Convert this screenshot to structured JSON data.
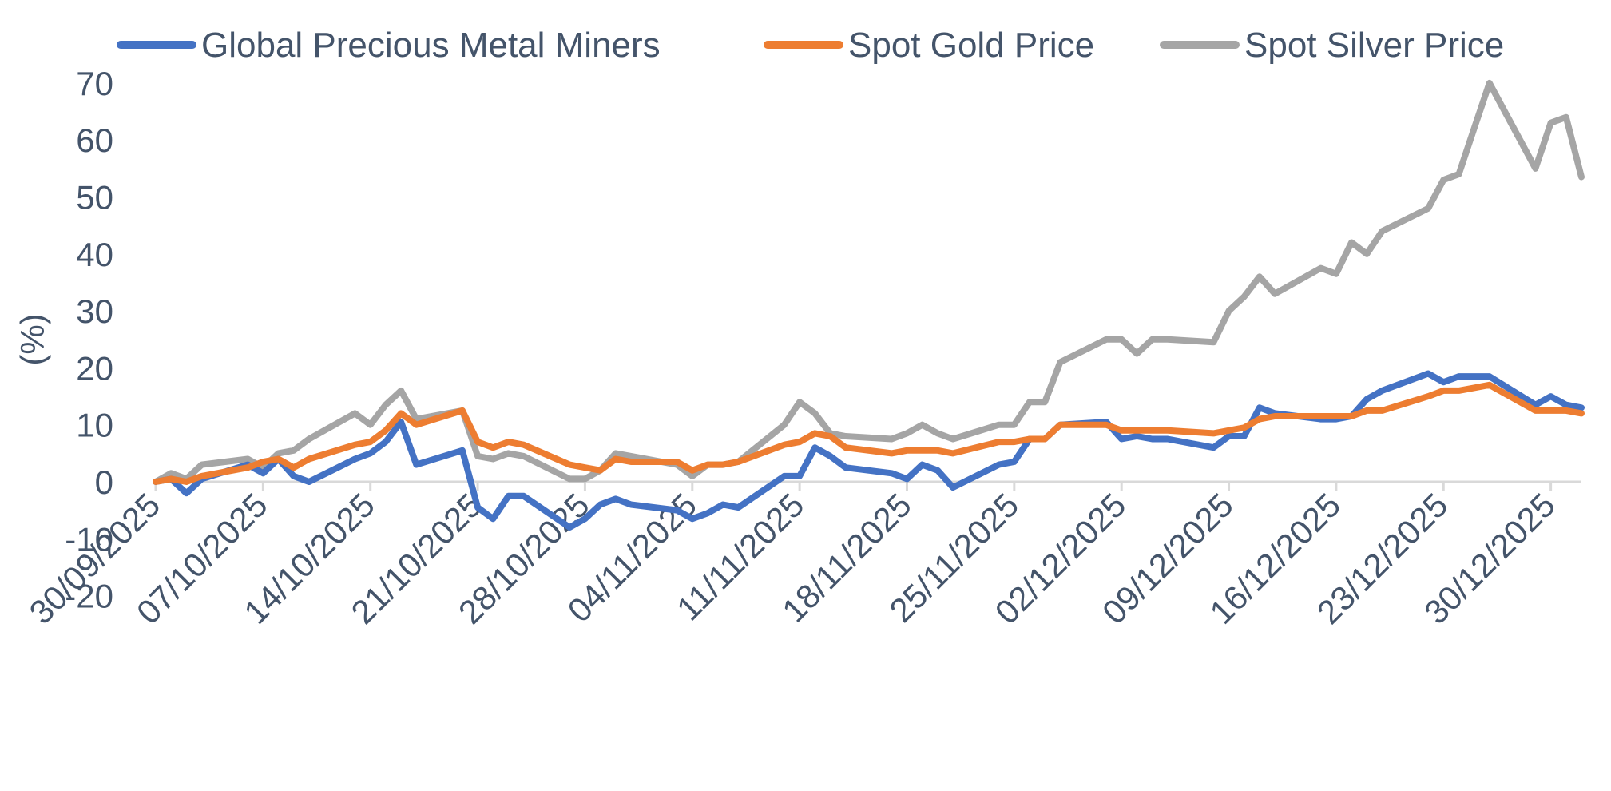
{
  "chart_data": {
    "type": "line",
    "title": "",
    "xlabel": "",
    "ylabel": "(%)",
    "ylim": [
      -20,
      70
    ],
    "yticks": [
      -20,
      -10,
      0,
      10,
      20,
      30,
      40,
      50,
      60,
      70
    ],
    "grid": false,
    "legend_position": "top",
    "x_tick_labels": [
      "30/09/2025",
      "07/10/2025",
      "14/10/2025",
      "21/10/2025",
      "28/10/2025",
      "04/11/2025",
      "11/11/2025",
      "18/11/2025",
      "25/11/2025",
      "02/12/2025",
      "09/12/2025",
      "16/12/2025",
      "23/12/2025",
      "30/12/2025"
    ],
    "x_day_range": [
      0,
      93
    ],
    "series": [
      {
        "name": "Global Precious Metal Miners",
        "color": "#4472c4",
        "x": [
          0,
          1,
          2,
          3,
          6,
          7,
          8,
          9,
          10,
          13,
          14,
          15,
          16,
          17,
          20,
          21,
          22,
          23,
          24,
          27,
          28,
          29,
          30,
          31,
          34,
          35,
          36,
          37,
          38,
          41,
          42,
          43,
          44,
          45,
          48,
          49,
          50,
          51,
          52,
          55,
          56,
          57,
          58,
          59,
          62,
          63,
          64,
          65,
          66,
          69,
          70,
          71,
          72,
          73,
          76,
          77,
          78,
          79,
          80,
          83,
          84,
          85,
          86,
          87,
          90,
          91,
          92,
          93
        ],
        "values": [
          0,
          0.5,
          -2,
          0.5,
          3,
          1.5,
          4,
          1,
          0,
          4,
          5,
          7,
          10.5,
          3,
          5.5,
          -4.5,
          -6.5,
          -2.5,
          -2.5,
          -8,
          -6.5,
          -4,
          -3,
          -4,
          -5,
          -6.5,
          -5.5,
          -4,
          -4.5,
          1,
          1,
          6,
          4.5,
          2.5,
          1.5,
          0.5,
          3,
          2,
          -1,
          3,
          3.5,
          7.5,
          7.5,
          10,
          10.5,
          7.5,
          8,
          7.5,
          7.5,
          6,
          8,
          8,
          13,
          12,
          11,
          11,
          11.5,
          14.5,
          16,
          19,
          17.5,
          18.5,
          18.5,
          18.5,
          13.5,
          15,
          13.5,
          13
        ]
      },
      {
        "name": "Spot Gold Price",
        "color": "#ed7d31",
        "x": [
          0,
          1,
          2,
          3,
          6,
          7,
          8,
          9,
          10,
          13,
          14,
          15,
          16,
          17,
          20,
          21,
          22,
          23,
          24,
          27,
          28,
          29,
          30,
          31,
          34,
          35,
          36,
          37,
          38,
          41,
          42,
          43,
          44,
          45,
          48,
          49,
          50,
          51,
          52,
          55,
          56,
          57,
          58,
          59,
          62,
          63,
          64,
          65,
          66,
          69,
          70,
          71,
          72,
          73,
          76,
          77,
          78,
          79,
          80,
          83,
          84,
          85,
          86,
          87,
          90,
          91,
          92,
          93
        ],
        "values": [
          0,
          0.5,
          0,
          1,
          2.5,
          3.5,
          4,
          2.5,
          4,
          6.5,
          7,
          9,
          12,
          10,
          12.5,
          7,
          6,
          7,
          6.5,
          3,
          2.5,
          2,
          4,
          3.5,
          3.5,
          2,
          3,
          3,
          3.5,
          6.5,
          7,
          8.5,
          8,
          6,
          5,
          5.5,
          5.5,
          5.5,
          5,
          7,
          7,
          7.5,
          7.5,
          10,
          10,
          9,
          9,
          9,
          9,
          8.5,
          9,
          9.5,
          11,
          11.5,
          11.5,
          11.5,
          11.5,
          12.5,
          12.5,
          15,
          16,
          16,
          16.5,
          17,
          12.5,
          12.5,
          12.5,
          12
        ]
      },
      {
        "name": "Spot Silver Price",
        "color": "#a5a5a5",
        "x": [
          0,
          1,
          2,
          3,
          6,
          7,
          8,
          9,
          10,
          13,
          14,
          15,
          16,
          17,
          20,
          21,
          22,
          23,
          24,
          27,
          28,
          29,
          30,
          31,
          34,
          35,
          36,
          37,
          38,
          41,
          42,
          43,
          44,
          45,
          48,
          49,
          50,
          51,
          52,
          55,
          56,
          57,
          58,
          59,
          62,
          63,
          64,
          65,
          66,
          69,
          70,
          71,
          72,
          73,
          76,
          77,
          78,
          79,
          80,
          83,
          84,
          85,
          86,
          87,
          90,
          91,
          92,
          93
        ],
        "values": [
          0,
          1.5,
          0.5,
          3,
          4,
          2.5,
          5,
          5.5,
          7.5,
          12,
          10,
          13.5,
          16,
          11,
          12.5,
          4.5,
          4,
          5,
          4.5,
          0.5,
          0.5,
          2,
          5,
          4.5,
          3,
          1,
          3,
          3,
          3.5,
          10,
          14,
          12,
          8.5,
          8,
          7.5,
          8.5,
          10,
          8.5,
          7.5,
          10,
          10,
          14,
          14,
          21,
          25,
          25,
          22.5,
          25,
          25,
          24.5,
          30,
          32.5,
          36,
          33,
          37.5,
          36.5,
          42,
          40,
          44,
          48,
          53,
          54,
          62,
          70,
          55,
          63,
          64,
          53.5
        ]
      }
    ]
  }
}
